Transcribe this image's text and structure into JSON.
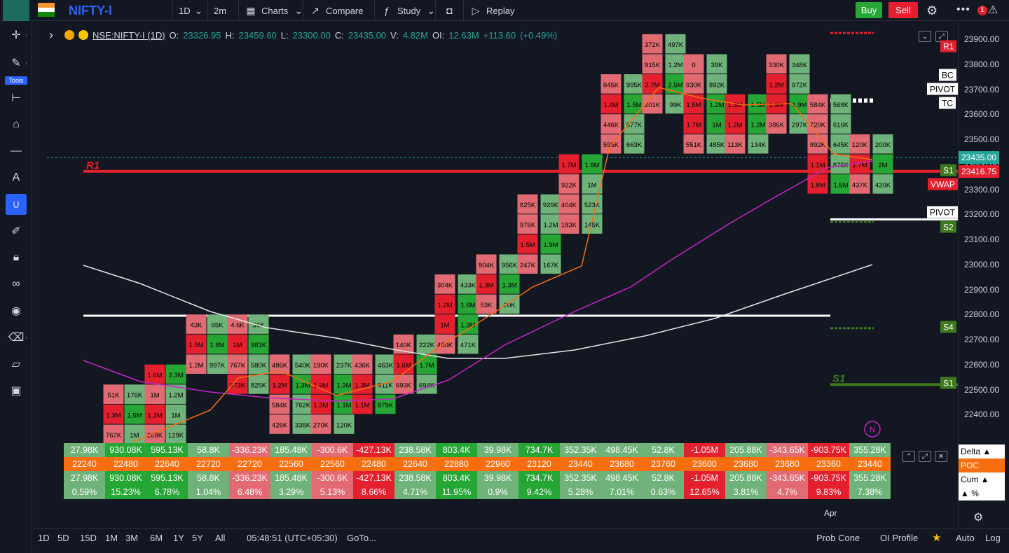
{
  "header": {
    "symbol": "NIFTY-I",
    "interval": "1D",
    "interval2": "2m",
    "charts_label": "Charts",
    "compare_label": "Compare",
    "study_label": "Study",
    "replay_label": "Replay",
    "buy_label": "Buy",
    "sell_label": "Sell",
    "notification_count": "1"
  },
  "sidebar": {
    "tools_label": "Tools"
  },
  "legend": {
    "symbol": "NSE:NIFTY-I (1D)",
    "o_label": "O:",
    "o": "23326.95",
    "h_label": "H:",
    "h": "23459.60",
    "l_label": "L:",
    "l": "23300.00",
    "c_label": "C:",
    "c": "23435.00",
    "v_label": "V:",
    "v": "4.82M",
    "oi_label": "OI:",
    "oi": "12.63M",
    "change": "+113.60",
    "change_pct": "(+0.49%)"
  },
  "price_axis": {
    "ticks": [
      "23900.00",
      "23800.00",
      "23700.00",
      "23600.00",
      "23500.00",
      "23400.00",
      "23300.00",
      "23200.00",
      "23100.00",
      "23000.00",
      "22900.00",
      "22800.00",
      "22700.00",
      "22600.00",
      "22500.00",
      "22400.00"
    ],
    "ticks_v": [
      23900,
      23800,
      23700,
      23600,
      23500,
      23400,
      23300,
      23200,
      23100,
      23000,
      22900,
      22800,
      22700,
      22600,
      22500,
      22400
    ],
    "last_price": "23435.00",
    "vwap_label": "VWAP",
    "vwap_price": "23416.75",
    "colors": {
      "up": "#26a634",
      "down": "#e5202e",
      "up_light": "#6fb27a",
      "down_light": "#e26a72",
      "vwap_line": "#c326c3"
    }
  },
  "levels": {
    "r1_tag": "R1",
    "bc_tag": "BC",
    "pivot_tag": "PIVOT",
    "tc_tag": "TC",
    "s1_tag": "S1",
    "pivot2_tag": "PIVOT",
    "s2_tag": "S2",
    "s4_tag": "S4",
    "s1b_tag": "S1",
    "r1_label": "R1",
    "s1_label": "S1"
  },
  "candles": [
    {
      "x": 162,
      "cells": [
        {
          "t": "51K",
          "c": "dl"
        },
        {
          "t": "1.3M",
          "c": "d"
        },
        {
          "t": "767K",
          "c": "dl"
        }
      ],
      "top": 22520
    },
    {
      "x": 192,
      "cells": [
        {
          "t": "176K",
          "c": "ul"
        },
        {
          "t": "1.5M",
          "c": "u"
        },
        {
          "t": "1M",
          "c": "ul"
        }
      ],
      "top": 22520
    },
    {
      "x": 221,
      "cells": [
        {
          "t": "1.6M",
          "c": "d"
        },
        {
          "t": "1M",
          "c": "dl"
        },
        {
          "t": "1.2M",
          "c": "d"
        },
        {
          "t": "268K",
          "c": "dl"
        }
      ],
      "top": 22600
    },
    {
      "x": 251,
      "cells": [
        {
          "t": "2.3M",
          "c": "u"
        },
        {
          "t": "1.2M",
          "c": "ul"
        },
        {
          "t": "1M",
          "c": "ul"
        },
        {
          "t": "129K",
          "c": "ul"
        }
      ],
      "top": 22600
    },
    {
      "x": 280,
      "cells": [
        {
          "t": "43K",
          "c": "dl"
        },
        {
          "t": "1.5M",
          "c": "d"
        },
        {
          "t": "1.2M",
          "c": "dl"
        }
      ],
      "top": 22800
    },
    {
      "x": 310,
      "cells": [
        {
          "t": "95K",
          "c": "ul"
        },
        {
          "t": "1.8M",
          "c": "u"
        },
        {
          "t": "997K",
          "c": "ul"
        }
      ],
      "top": 22800
    },
    {
      "x": 339,
      "cells": [
        {
          "t": "4.6K",
          "c": "dl"
        },
        {
          "t": "1M",
          "c": "d"
        },
        {
          "t": "767K",
          "c": "dl"
        },
        {
          "t": "973K",
          "c": "d"
        }
      ],
      "top": 22800
    },
    {
      "x": 369,
      "cells": [
        {
          "t": "36K",
          "c": "ul"
        },
        {
          "t": "983K",
          "c": "u"
        },
        {
          "t": "580K",
          "c": "ul"
        },
        {
          "t": "825K",
          "c": "ul"
        }
      ],
      "top": 22800
    },
    {
      "x": 399,
      "cells": [
        {
          "t": "486K",
          "c": "dl"
        },
        {
          "t": "1.2M",
          "c": "d"
        },
        {
          "t": "584K",
          "c": "dl"
        },
        {
          "t": "426K",
          "c": "dl"
        }
      ],
      "top": 22640
    },
    {
      "x": 432,
      "cells": [
        {
          "t": "540K",
          "c": "ul"
        },
        {
          "t": "1.3M",
          "c": "u"
        },
        {
          "t": "762K",
          "c": "ul"
        },
        {
          "t": "335K",
          "c": "ul"
        }
      ],
      "top": 22640
    },
    {
      "x": 458,
      "cells": [
        {
          "t": "190K",
          "c": "dl"
        },
        {
          "t": "1.3M",
          "c": "d"
        },
        {
          "t": "1.3M",
          "c": "d"
        },
        {
          "t": "270K",
          "c": "dl"
        }
      ],
      "top": 22640
    },
    {
      "x": 491,
      "cells": [
        {
          "t": "237K",
          "c": "ul"
        },
        {
          "t": "1.3M",
          "c": "u"
        },
        {
          "t": "1.1M",
          "c": "u"
        },
        {
          "t": "120K",
          "c": "ul"
        }
      ],
      "top": 22640
    },
    {
      "x": 517,
      "cells": [
        {
          "t": "436K",
          "c": "dl"
        },
        {
          "t": "1.3M",
          "c": "d"
        },
        {
          "t": "1.1M",
          "c": "d"
        }
      ],
      "top": 22640
    },
    {
      "x": 550,
      "cells": [
        {
          "t": "463K",
          "c": "ul"
        },
        {
          "t": "911K",
          "c": "ul"
        },
        {
          "t": "879K",
          "c": "u"
        }
      ],
      "top": 22640
    },
    {
      "x": 576,
      "cells": [
        {
          "t": "140K",
          "c": "dl"
        },
        {
          "t": "1.6M",
          "c": "d"
        },
        {
          "t": "693K",
          "c": "dl"
        }
      ],
      "top": 22720
    },
    {
      "x": 609,
      "cells": [
        {
          "t": "222K",
          "c": "ul"
        },
        {
          "t": "1.7M",
          "c": "u"
        },
        {
          "t": "694K",
          "c": "ul"
        }
      ],
      "top": 22720
    },
    {
      "x": 635,
      "cells": [
        {
          "t": "304K",
          "c": "dl"
        },
        {
          "t": "1.2M",
          "c": "d"
        },
        {
          "t": "1M",
          "c": "d"
        },
        {
          "t": "450K",
          "c": "dl"
        }
      ],
      "top": 22960
    },
    {
      "x": 668,
      "cells": [
        {
          "t": "433K",
          "c": "ul"
        },
        {
          "t": "1.6M",
          "c": "u"
        },
        {
          "t": "1.3M",
          "c": "u"
        },
        {
          "t": "471K",
          "c": "ul"
        }
      ],
      "top": 22960
    },
    {
      "x": 694,
      "cells": [
        {
          "t": "804K",
          "c": "dl"
        },
        {
          "t": "1.3M",
          "c": "d"
        },
        {
          "t": "53K",
          "c": "dl"
        }
      ],
      "top": 23040
    },
    {
      "x": 727,
      "cells": [
        {
          "t": "956K",
          "c": "ul"
        },
        {
          "t": "1.3M",
          "c": "u"
        },
        {
          "t": "20K",
          "c": "ul"
        }
      ],
      "top": 23040
    },
    {
      "x": 753,
      "cells": [
        {
          "t": "825K",
          "c": "dl"
        },
        {
          "t": "976K",
          "c": "dl"
        },
        {
          "t": "1.5M",
          "c": "d"
        },
        {
          "t": "247K",
          "c": "dl"
        }
      ],
      "top": 23280
    },
    {
      "x": 786,
      "cells": [
        {
          "t": "929K",
          "c": "ul"
        },
        {
          "t": "1.2M",
          "c": "ul"
        },
        {
          "t": "1.9M",
          "c": "u"
        },
        {
          "t": "167K",
          "c": "ul"
        }
      ],
      "top": 23280
    },
    {
      "x": 812,
      "cells": [
        {
          "t": "1.7M",
          "c": "d"
        },
        {
          "t": "922K",
          "c": "dl"
        },
        {
          "t": "404K",
          "c": "dl"
        },
        {
          "t": "183K",
          "c": "dl"
        }
      ],
      "top": 23440
    },
    {
      "x": 845,
      "cells": [
        {
          "t": "1.8M",
          "c": "u"
        },
        {
          "t": "1M",
          "c": "ul"
        },
        {
          "t": "523K",
          "c": "ul"
        },
        {
          "t": "145K",
          "c": "ul"
        }
      ],
      "top": 23440
    },
    {
      "x": 872,
      "cells": [
        {
          "t": "845K",
          "c": "dl"
        },
        {
          "t": "1.4M",
          "c": "d"
        },
        {
          "t": "446K",
          "c": "dl"
        },
        {
          "t": "595K",
          "c": "dl"
        }
      ],
      "top": 23760
    },
    {
      "x": 905,
      "cells": [
        {
          "t": "995K",
          "c": "ul"
        },
        {
          "t": "1.5M",
          "c": "u"
        },
        {
          "t": "677K",
          "c": "ul"
        },
        {
          "t": "663K",
          "c": "ul"
        }
      ],
      "top": 23760
    },
    {
      "x": 931,
      "cells": [
        {
          "t": "372K",
          "c": "dl"
        },
        {
          "t": "915K",
          "c": "dl"
        },
        {
          "t": "2.7M",
          "c": "d"
        },
        {
          "t": "201K",
          "c": "dl"
        }
      ],
      "top": 23920
    },
    {
      "x": 964,
      "cells": [
        {
          "t": "497K",
          "c": "ul"
        },
        {
          "t": "1.2M",
          "c": "ul"
        },
        {
          "t": "2.5M",
          "c": "u"
        },
        {
          "t": "99K",
          "c": "ul"
        }
      ],
      "top": 23920
    },
    {
      "x": 990,
      "cells": [
        {
          "t": "0",
          "c": "dl"
        },
        {
          "t": "930K",
          "c": "dl"
        },
        {
          "t": "1.5M",
          "c": "d"
        },
        {
          "t": "1.7M",
          "c": "d"
        },
        {
          "t": "551K",
          "c": "dl"
        }
      ],
      "top": 23840
    },
    {
      "x": 1023,
      "cells": [
        {
          "t": "39K",
          "c": "ul"
        },
        {
          "t": "892K",
          "c": "ul"
        },
        {
          "t": "1.2M",
          "c": "u"
        },
        {
          "t": "1M",
          "c": "u"
        },
        {
          "t": "485K",
          "c": "ul"
        }
      ],
      "top": 23840
    },
    {
      "x": 1049,
      "cells": [
        {
          "t": "1.3M",
          "c": "d"
        },
        {
          "t": "1.2M",
          "c": "d"
        },
        {
          "t": "113K",
          "c": "dl"
        }
      ],
      "top": 23680
    },
    {
      "x": 1082,
      "cells": [
        {
          "t": "1.5M",
          "c": "u"
        },
        {
          "t": "1.2M",
          "c": "u"
        },
        {
          "t": "134K",
          "c": "ul"
        }
      ],
      "top": 23680
    },
    {
      "x": 1108,
      "cells": [
        {
          "t": "330K",
          "c": "dl"
        },
        {
          "t": "1.2M",
          "c": "d"
        },
        {
          "t": "1.9M",
          "c": "d"
        },
        {
          "t": "386K",
          "c": "dl"
        }
      ],
      "top": 23840
    },
    {
      "x": 1141,
      "cells": [
        {
          "t": "348K",
          "c": "ul"
        },
        {
          "t": "972K",
          "c": "ul"
        },
        {
          "t": "1.9M",
          "c": "u"
        },
        {
          "t": "297K",
          "c": "ul"
        }
      ],
      "top": 23840
    },
    {
      "x": 1167,
      "cells": [
        {
          "t": "584K",
          "c": "dl"
        },
        {
          "t": "720K",
          "c": "dl"
        },
        {
          "t": "892K",
          "c": "dl"
        },
        {
          "t": "1.1M",
          "c": "d"
        },
        {
          "t": "1.8M",
          "c": "d"
        }
      ],
      "top": 23680
    },
    {
      "x": 1200,
      "cells": [
        {
          "t": "568K",
          "c": "ul"
        },
        {
          "t": "616K",
          "c": "ul"
        },
        {
          "t": "645K",
          "c": "ul"
        },
        {
          "t": "875K",
          "c": "ul"
        },
        {
          "t": "1.5M",
          "c": "u"
        }
      ],
      "top": 23680
    },
    {
      "x": 1227,
      "cells": [
        {
          "t": "120K",
          "c": "dl"
        },
        {
          "t": "1.7M",
          "c": "d"
        },
        {
          "t": "437K",
          "c": "dl"
        }
      ],
      "top": 23520
    },
    {
      "x": 1260,
      "cells": [
        {
          "t": "200K",
          "c": "ul"
        },
        {
          "t": "2M",
          "c": "u"
        },
        {
          "t": "420K",
          "c": "ul"
        }
      ],
      "top": 23520
    }
  ],
  "table": {
    "row_labels": [
      "Delta ▲",
      "POC",
      "Cum ▲",
      "▲ %"
    ],
    "rows": [
      [
        "27.98K",
        "930.08K",
        "595.13K",
        "58.8K",
        "-336.23K",
        "185.48K",
        "-300.6K",
        "-427.13K",
        "238.58K",
        "803.4K",
        "39.98K",
        "734.7K",
        "352.35K",
        "498.45K",
        "52.8K",
        "-1.05M",
        "205.88K",
        "-343.65K",
        "-903.75K",
        "355.28K"
      ],
      [
        "22240",
        "22480",
        "22640",
        "22720",
        "22720",
        "22560",
        "22560",
        "22480",
        "22640",
        "22880",
        "22960",
        "23120",
        "23440",
        "23680",
        "23760",
        "23600",
        "23680",
        "23680",
        "23360",
        "23440"
      ],
      [
        "27.98K",
        "930.08K",
        "595.13K",
        "58.8K",
        "-336.23K",
        "185.48K",
        "-300.6K",
        "-427.13K",
        "238.58K",
        "803.4K",
        "39.98K",
        "734.7K",
        "352.35K",
        "498.45K",
        "52.8K",
        "-1.05M",
        "205.88K",
        "-343.65K",
        "-903.75K",
        "355.28K"
      ],
      [
        "0.59%",
        "15.23%",
        "6.78%",
        "1.04%",
        "6.48%",
        "3.29%",
        "5.13%",
        "8.66%",
        "4.71%",
        "11.95%",
        "0.9%",
        "9.42%",
        "5.28%",
        "7.01%",
        "0.63%",
        "12.65%",
        "3.81%",
        "4.7%",
        "9.83%",
        "7.38%"
      ]
    ],
    "row_colors": [
      [
        "#6fb27a",
        "#26a634",
        "#26a634",
        "#6fb27a",
        "#e26a72",
        "#6fb27a",
        "#e26a72",
        "#e5202e",
        "#6fb27a",
        "#26a634",
        "#6fb27a",
        "#26a634",
        "#6fb27a",
        "#6fb27a",
        "#6fb27a",
        "#e5202e",
        "#6fb27a",
        "#e26a72",
        "#e5202e",
        "#6fb27a"
      ],
      [
        "#f76e10",
        "#f76e10",
        "#f76e10",
        "#f76e10",
        "#f76e10",
        "#f76e10",
        "#f76e10",
        "#f76e10",
        "#f76e10",
        "#f76e10",
        "#f76e10",
        "#f76e10",
        "#f76e10",
        "#f76e10",
        "#f76e10",
        "#f76e10",
        "#f76e10",
        "#f76e10",
        "#f76e10",
        "#f76e10"
      ],
      [
        "#6fb27a",
        "#26a634",
        "#26a634",
        "#6fb27a",
        "#e26a72",
        "#6fb27a",
        "#e26a72",
        "#e5202e",
        "#6fb27a",
        "#26a634",
        "#6fb27a",
        "#26a634",
        "#6fb27a",
        "#6fb27a",
        "#6fb27a",
        "#e5202e",
        "#6fb27a",
        "#e26a72",
        "#e5202e",
        "#6fb27a"
      ],
      [
        "#6fb27a",
        "#26a634",
        "#26a634",
        "#6fb27a",
        "#e26a72",
        "#6fb27a",
        "#e26a72",
        "#e5202e",
        "#6fb27a",
        "#26a634",
        "#6fb27a",
        "#26a634",
        "#6fb27a",
        "#6fb27a",
        "#6fb27a",
        "#e5202e",
        "#6fb27a",
        "#e26a72",
        "#e5202e",
        "#6fb27a"
      ]
    ]
  },
  "time_axis": {
    "label": "Apr"
  },
  "footer": {
    "ranges": [
      "1D",
      "5D",
      "15D",
      "1M",
      "3M",
      "6M",
      "1Y",
      "5Y",
      "All"
    ],
    "clock": "05:48:51 (UTC+05:30)",
    "goto": "GoTo...",
    "prob_cone": "Prob Cone",
    "oi_profile": "OI Profile",
    "auto": "Auto",
    "log": "Log"
  },
  "watermark": "N"
}
